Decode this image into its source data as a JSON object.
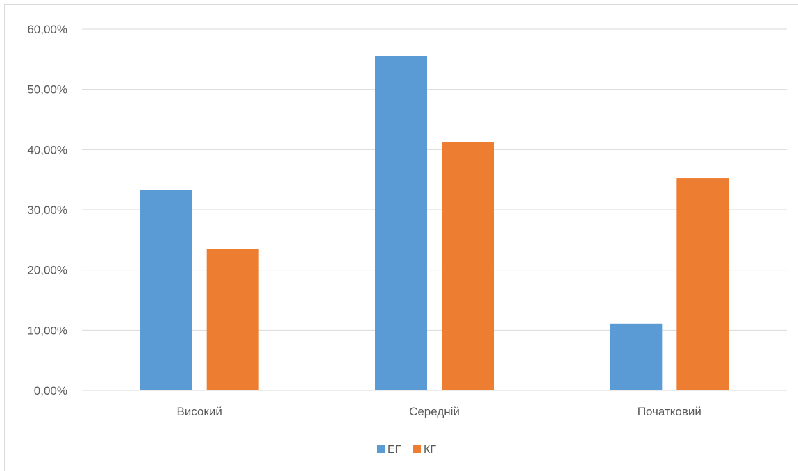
{
  "chart_data": {
    "type": "bar",
    "categories": [
      "Високий",
      "Середній",
      "Початковий"
    ],
    "series": [
      {
        "name": "ЕГ",
        "values": [
          33.3,
          55.5,
          11.1
        ],
        "color": "#5b9bd5"
      },
      {
        "name": "КГ",
        "values": [
          23.5,
          41.2,
          35.3
        ],
        "color": "#ed7d31"
      }
    ],
    "y_ticks": [
      "0,00%",
      "10,00%",
      "20,00%",
      "30,00%",
      "40,00%",
      "50,00%",
      "60,00%"
    ],
    "ylim": [
      0,
      60
    ],
    "y_unit": "%",
    "grid": true,
    "legend_position": "bottom",
    "gridline_color": "#d9d9d9"
  }
}
